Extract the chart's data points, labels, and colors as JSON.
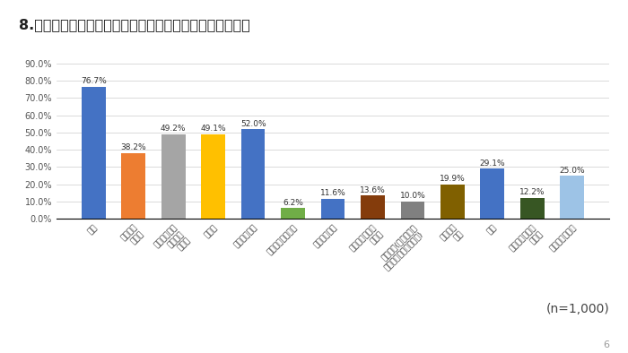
{
  "title": "8.整体・鍼灸院を選ぶ判断基準は何ですか（複数回答可）",
  "tick_labels": [
    "価格",
    "保険適用\nの有無",
    "施術メニュー\nの種類や\n豊富さ",
    "雰囲気",
    "口コミ・評判",
    "子算だけかどうか",
    "腕前があるか",
    "割引やクーポン\nの有無",
    "決済手段(クレジット\nカード、モバイル決済)",
    "駐車場の\n有無",
    "距離",
    "同性の施術士が\nいるか",
    "予約のしやすさ"
  ],
  "values": [
    76.7,
    38.2,
    49.2,
    49.1,
    52.0,
    6.2,
    11.6,
    13.6,
    10.0,
    19.9,
    29.1,
    12.2,
    25.0
  ],
  "bar_colors": [
    "#4472c4",
    "#ed7d31",
    "#a5a5a5",
    "#ffc000",
    "#4472c4",
    "#70ad47",
    "#4472c4",
    "#843c0c",
    "#808080",
    "#806000",
    "#4472c4",
    "#375623",
    "#9dc3e6"
  ],
  "ylim": [
    0,
    90
  ],
  "yticks": [
    0,
    10,
    20,
    30,
    40,
    50,
    60,
    70,
    80,
    90
  ],
  "background_color": "#ffffff",
  "annotation": "(n=1,000)",
  "page_number": "6"
}
